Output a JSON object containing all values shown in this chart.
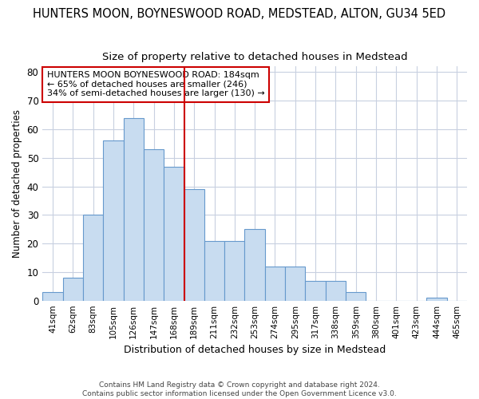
{
  "title": "HUNTERS MOON, BOYNESWOOD ROAD, MEDSTEAD, ALTON, GU34 5ED",
  "subtitle": "Size of property relative to detached houses in Medstead",
  "xlabel": "Distribution of detached houses by size in Medstead",
  "ylabel": "Number of detached properties",
  "footer_line1": "Contains HM Land Registry data © Crown copyright and database right 2024.",
  "footer_line2": "Contains public sector information licensed under the Open Government Licence v3.0.",
  "bar_labels": [
    "41sqm",
    "62sqm",
    "83sqm",
    "105sqm",
    "126sqm",
    "147sqm",
    "168sqm",
    "189sqm",
    "211sqm",
    "232sqm",
    "253sqm",
    "274sqm",
    "295sqm",
    "317sqm",
    "338sqm",
    "359sqm",
    "380sqm",
    "401sqm",
    "423sqm",
    "444sqm",
    "465sqm"
  ],
  "bar_values": [
    3,
    8,
    30,
    56,
    64,
    53,
    47,
    39,
    21,
    21,
    25,
    12,
    12,
    7,
    7,
    3,
    0,
    0,
    0,
    1,
    0
  ],
  "bar_color": "#c8dcf0",
  "bar_edge_color": "#6699cc",
  "grid_color": "#c8d0e0",
  "background_color": "#ffffff",
  "fig_background": "#ffffff",
  "vline_color": "#cc0000",
  "vline_index": 7,
  "annotation_text": "HUNTERS MOON BOYNESWOOD ROAD: 184sqm\n← 65% of detached houses are smaller (246)\n34% of semi-detached houses are larger (130) →",
  "annotation_box_color": "#ffffff",
  "annotation_box_edge": "#cc0000",
  "ylim": [
    0,
    82
  ],
  "yticks": [
    0,
    10,
    20,
    30,
    40,
    50,
    60,
    70,
    80
  ],
  "title_fontsize": 10.5,
  "subtitle_fontsize": 9.5
}
